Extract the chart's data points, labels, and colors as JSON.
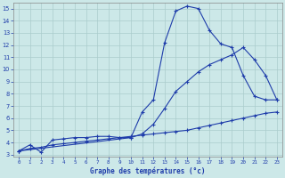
{
  "title": "Graphe des températures (°c)",
  "bg_color": "#cce8e8",
  "grid_color": "#aacccc",
  "line_color": "#1e3caa",
  "xlim": [
    -0.5,
    23.5
  ],
  "ylim": [
    2.8,
    15.5
  ],
  "xticks": [
    0,
    1,
    2,
    3,
    4,
    5,
    6,
    7,
    8,
    9,
    10,
    11,
    12,
    13,
    14,
    15,
    16,
    17,
    18,
    19,
    20,
    21,
    22,
    23
  ],
  "yticks": [
    3,
    4,
    5,
    6,
    7,
    8,
    9,
    10,
    11,
    12,
    13,
    14,
    15
  ],
  "curve1_x": [
    0,
    1,
    2,
    3,
    4,
    5,
    6,
    7,
    8,
    9,
    10,
    11,
    12,
    13,
    14,
    15,
    16,
    17,
    18,
    19,
    20,
    21,
    22,
    23
  ],
  "curve1_y": [
    3.3,
    3.8,
    3.2,
    4.2,
    4.3,
    4.4,
    4.4,
    4.5,
    4.5,
    4.4,
    4.4,
    6.5,
    7.5,
    12.2,
    14.8,
    15.2,
    15.0,
    13.2,
    12.1,
    11.8,
    9.5,
    7.8,
    7.5,
    7.5
  ],
  "curve2_x": [
    0,
    10,
    11,
    12,
    13,
    14,
    15,
    16,
    17,
    18,
    19,
    20,
    21,
    22,
    23
  ],
  "curve2_y": [
    3.3,
    4.4,
    4.7,
    5.5,
    6.8,
    8.2,
    9.0,
    9.8,
    10.4,
    10.8,
    11.2,
    11.8,
    10.8,
    9.5,
    7.5
  ],
  "curve3_x": [
    0,
    1,
    2,
    3,
    4,
    5,
    6,
    7,
    8,
    9,
    10,
    11,
    12,
    13,
    14,
    15,
    16,
    17,
    18,
    19,
    20,
    21,
    22,
    23
  ],
  "curve3_y": [
    3.3,
    3.5,
    3.6,
    3.8,
    3.9,
    4.0,
    4.1,
    4.2,
    4.3,
    4.4,
    4.5,
    4.6,
    4.7,
    4.8,
    4.9,
    5.0,
    5.2,
    5.4,
    5.6,
    5.8,
    6.0,
    6.2,
    6.4,
    6.5
  ]
}
